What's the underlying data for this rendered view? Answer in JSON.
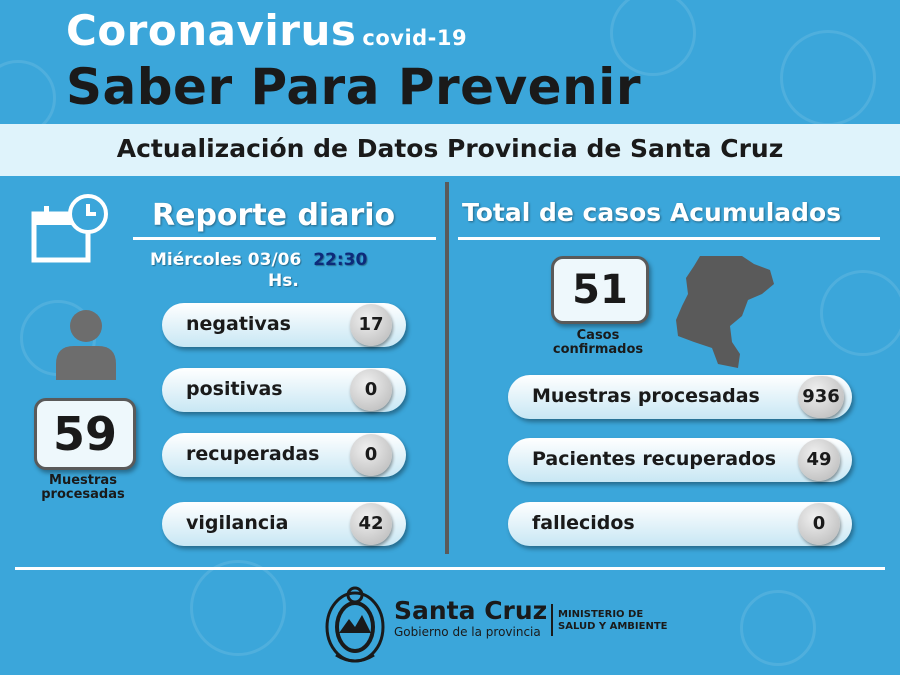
{
  "header": {
    "title": "Coronavirus",
    "title_suffix": "covid-19",
    "subtitle": "Saber Para Prevenir",
    "band": "Actualización de Datos Provincia de Santa Cruz"
  },
  "daily": {
    "heading": "Reporte diario",
    "date": "Miércoles 03/06",
    "time": "22:30",
    "time_unit": "Hs.",
    "samples_value": "59",
    "samples_caption": "Muestras procesadas",
    "items": [
      {
        "label": "negativas",
        "value": "17"
      },
      {
        "label": "positivas",
        "value": "0"
      },
      {
        "label": "recuperadas",
        "value": "0"
      },
      {
        "label": "vigilancia",
        "value": "42"
      }
    ]
  },
  "total": {
    "heading": "Total de casos Acumulados",
    "confirmed_value": "51",
    "confirmed_caption": "Casos confirmados",
    "items": [
      {
        "label": "Muestras procesadas",
        "value": "936"
      },
      {
        "label": "Pacientes recuperados",
        "value": "49"
      },
      {
        "label": "fallecidos",
        "value": "0"
      }
    ]
  },
  "footer": {
    "brand": "Santa Cruz",
    "brand_sub": "Gobierno de la provincia",
    "ministry_line1": "MINISTERIO DE",
    "ministry_line2": "SALUD Y AMBIENTE"
  },
  "icons": [
    "calendar-clock-icon",
    "person-icon",
    "province-map-icon",
    "coat-of-arms-icon",
    "virus-icon"
  ],
  "colors": {
    "background": "#3ba6da",
    "band": "#dff3fb",
    "dark": "#1a1a1a",
    "highlight": "#0d2a7a"
  }
}
